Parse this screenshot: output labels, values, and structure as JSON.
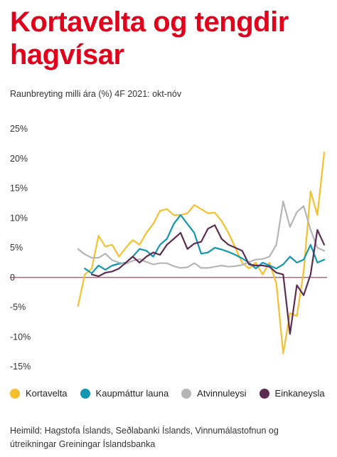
{
  "header": {
    "title": "Kortavelta og tengdir hagvísar",
    "subtitle": "Raunbreyting milli ára (%)  4F 2021: okt-nóv"
  },
  "footer": {
    "source": "Heimild: Hagstofa Íslands, Seðlabanki Íslands, Vinnumálastofnun og útreikningar Greiningar Íslandsbanka"
  },
  "chart_data": {
    "type": "line",
    "x_count": 43,
    "ylim": [
      -15,
      25
    ],
    "yticks": [
      25,
      20,
      15,
      10,
      5,
      0,
      -5,
      -10,
      -15
    ],
    "ytick_labels": [
      "25%",
      "20%",
      "15%",
      "10%",
      "5%",
      "0",
      "-5%",
      "-10%",
      "-15%"
    ],
    "grid": false,
    "legend_position": "bottom",
    "series": [
      {
        "name": "Kortavelta",
        "color": "#f5c02f",
        "values": [
          -4.8,
          0.5,
          1.5,
          7,
          5.2,
          5.5,
          3.5,
          5,
          6.3,
          5.5,
          7.5,
          9,
          11.2,
          11.5,
          10.5,
          10.5,
          10.8,
          12.2,
          11.5,
          10.8,
          10.9,
          9.5,
          7.5,
          5,
          2.5,
          1.5,
          2.5,
          0.5,
          2.5,
          -1,
          -12.8,
          -6,
          -6.5,
          1,
          14.5,
          10.5,
          21
        ]
      },
      {
        "name": "Kaupmáttur launa",
        "color": "#1197b0",
        "values": [
          1.5,
          0.7,
          2,
          1.3,
          2,
          2.3,
          2.5,
          3.5,
          4.8,
          4.5,
          3.5,
          5.5,
          6.5,
          9,
          10.5,
          9,
          7.5,
          4,
          4.2,
          5,
          4.7,
          4.3,
          3.8,
          3.2,
          2.5,
          1.5,
          2.5,
          2,
          1.5,
          2.2,
          3.5,
          2.5,
          3,
          5.5,
          2.5,
          3
        ]
      },
      {
        "name": "Atvinnuleysi",
        "color": "#b5b5b5",
        "values": [
          4.8,
          3.9,
          3.3,
          3.3,
          4,
          2.9,
          2.5,
          2.3,
          2.8,
          3.1,
          2.6,
          2.2,
          2.4,
          2.4,
          1.9,
          1.6,
          1.7,
          2.4,
          1.6,
          1.6,
          1.8,
          2,
          1.8,
          1.9,
          2.1,
          2.6,
          3,
          3.1,
          3.5,
          5.5,
          12.8,
          8.5,
          11,
          12,
          8,
          5,
          4.5
        ]
      },
      {
        "name": "Einkaneysla",
        "color": "#5c2d52",
        "values": [
          0.5,
          0.2,
          0.8,
          1,
          1.5,
          2.5,
          3.5,
          2.5,
          3.5,
          4.2,
          3.8,
          5.5,
          6.5,
          7.5,
          4.8,
          5.7,
          6,
          8.2,
          8.8,
          6.5,
          5.5,
          5,
          4.5,
          2.2,
          2,
          2,
          1.8,
          0.8,
          0.5,
          -9.5,
          -1.3,
          -3,
          0.5,
          8,
          5.5
        ]
      }
    ]
  }
}
